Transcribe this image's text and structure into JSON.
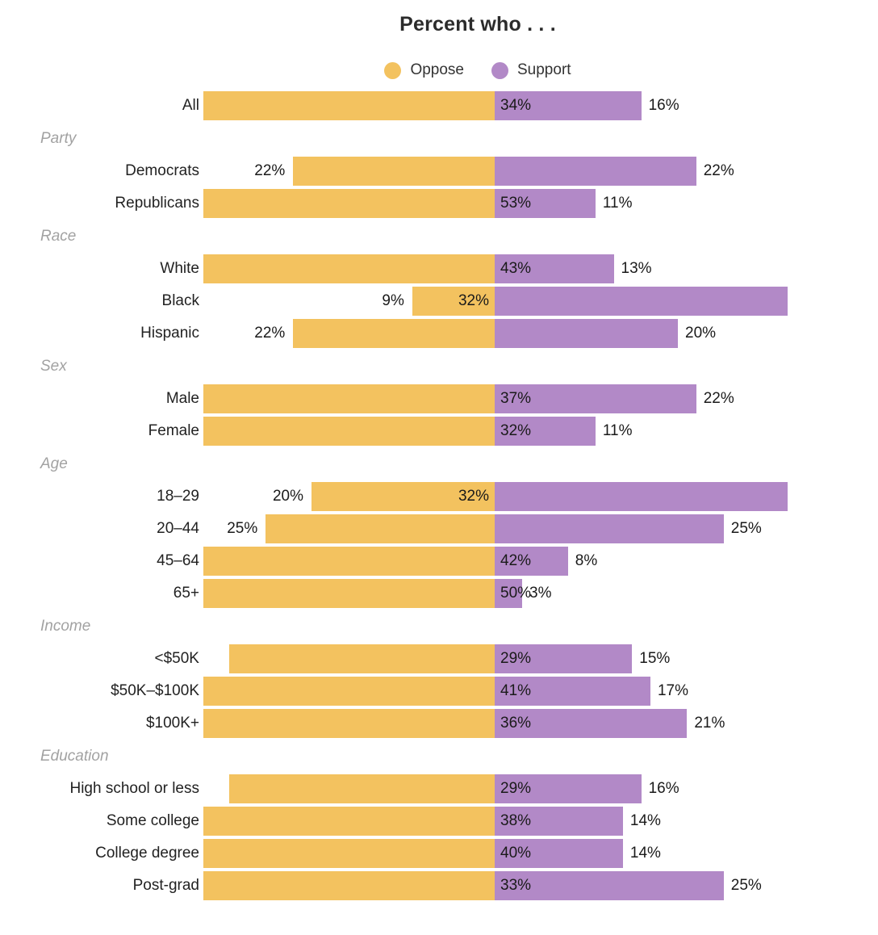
{
  "chart_data": {
    "type": "bar",
    "variant": "diverging",
    "title": "Percent who . . .",
    "unit": "%",
    "legend": {
      "oppose": "Oppose",
      "support": "Support"
    },
    "colors": {
      "oppose": "#F3C25F",
      "support": "#B289C7",
      "title_text": "#2B2B2B",
      "value_text": "#1A1A1A",
      "group_header_text": "#A2A2A2"
    },
    "layout_hints": {
      "legend_position": "top",
      "diverging_center": true,
      "grid": false,
      "bars_clipped_at_pct": 32
    },
    "groups": [
      {
        "header": null,
        "rows": [
          {
            "label": "All",
            "oppose": 34,
            "support": 16
          }
        ]
      },
      {
        "header": "Party",
        "rows": [
          {
            "label": "Democrats",
            "oppose": 22,
            "support": 22
          },
          {
            "label": "Republicans",
            "oppose": 53,
            "support": 11
          }
        ]
      },
      {
        "header": "Race",
        "rows": [
          {
            "label": "White",
            "oppose": 43,
            "support": 13
          },
          {
            "label": "Black",
            "oppose": 9,
            "support": 32
          },
          {
            "label": "Hispanic",
            "oppose": 22,
            "support": 20
          }
        ]
      },
      {
        "header": "Sex",
        "rows": [
          {
            "label": "Male",
            "oppose": 37,
            "support": 22
          },
          {
            "label": "Female",
            "oppose": 32,
            "support": 11
          }
        ]
      },
      {
        "header": "Age",
        "rows": [
          {
            "label": "18–29",
            "oppose": 20,
            "support": 32
          },
          {
            "label": "20–44",
            "oppose": 25,
            "support": 25
          },
          {
            "label": "45–64",
            "oppose": 42,
            "support": 8
          },
          {
            "label": "65+",
            "oppose": 50,
            "support": 3
          }
        ]
      },
      {
        "header": "Income",
        "rows": [
          {
            "label": "<$50K",
            "oppose": 29,
            "support": 15
          },
          {
            "label": "$50K–$100K",
            "oppose": 41,
            "support": 17
          },
          {
            "label": "$100K+",
            "oppose": 36,
            "support": 21
          }
        ]
      },
      {
        "header": "Education",
        "rows": [
          {
            "label": "High school or less",
            "oppose": 29,
            "support": 16
          },
          {
            "label": "Some college",
            "oppose": 38,
            "support": 14
          },
          {
            "label": "College degree",
            "oppose": 40,
            "support": 14
          },
          {
            "label": "Post-grad",
            "oppose": 33,
            "support": 25
          }
        ]
      }
    ]
  }
}
